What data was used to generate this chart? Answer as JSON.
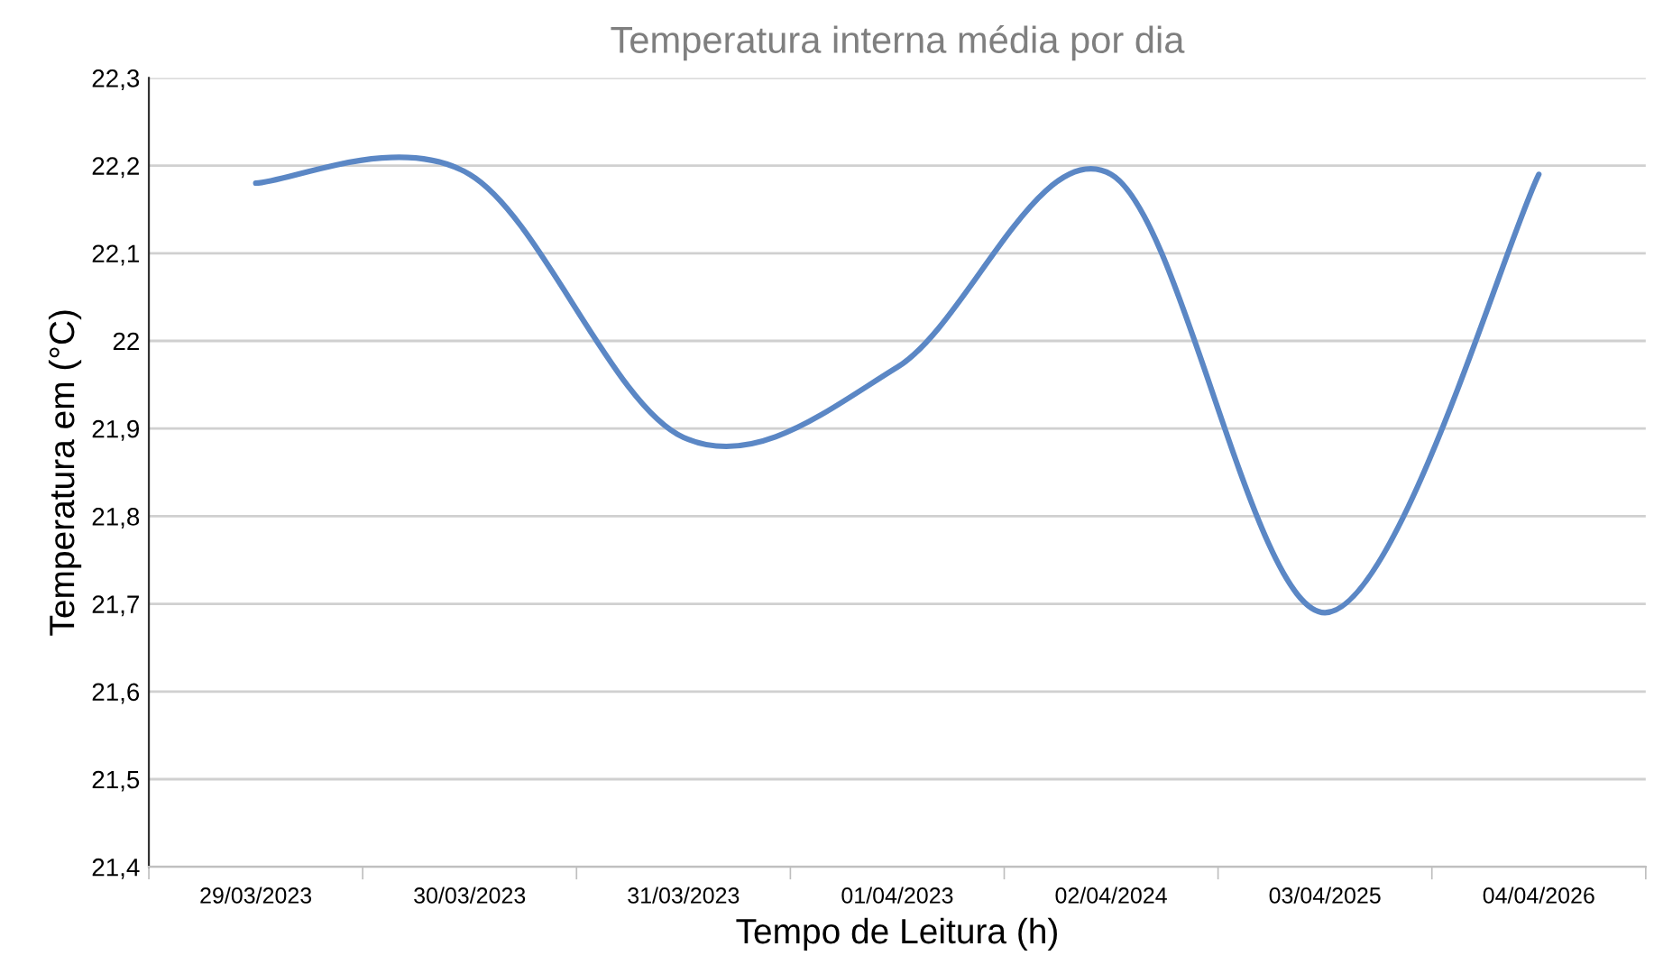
{
  "chart_data": {
    "type": "line",
    "title": "Temperatura interna média por dia",
    "xlabel": "Tempo de Leitura (h)",
    "ylabel": "Temperatura em (°C)",
    "categories": [
      "29/03/2023",
      "30/03/2023",
      "31/03/2023",
      "01/04/2023",
      "02/04/2024",
      "03/04/2025",
      "04/04/2026"
    ],
    "series": [
      {
        "color": "#5b87c5",
        "values": [
          22.18,
          22.19,
          21.89,
          21.97,
          22.19,
          21.69,
          22.19
        ]
      }
    ],
    "ylim": [
      21.4,
      22.3
    ],
    "yticks": [
      {
        "value": 21.4,
        "label": "21,4"
      },
      {
        "value": 21.5,
        "label": "21,5"
      },
      {
        "value": 21.6,
        "label": "21,6"
      },
      {
        "value": 21.7,
        "label": "21,7"
      },
      {
        "value": 21.8,
        "label": "21,8"
      },
      {
        "value": 21.9,
        "label": "21,9"
      },
      {
        "value": 22,
        "label": "22"
      },
      {
        "value": 22.1,
        "label": "22,1"
      },
      {
        "value": 22.2,
        "label": "22,2"
      },
      {
        "value": 22.3,
        "label": "22,3"
      }
    ],
    "grid": "y",
    "legend": false
  }
}
